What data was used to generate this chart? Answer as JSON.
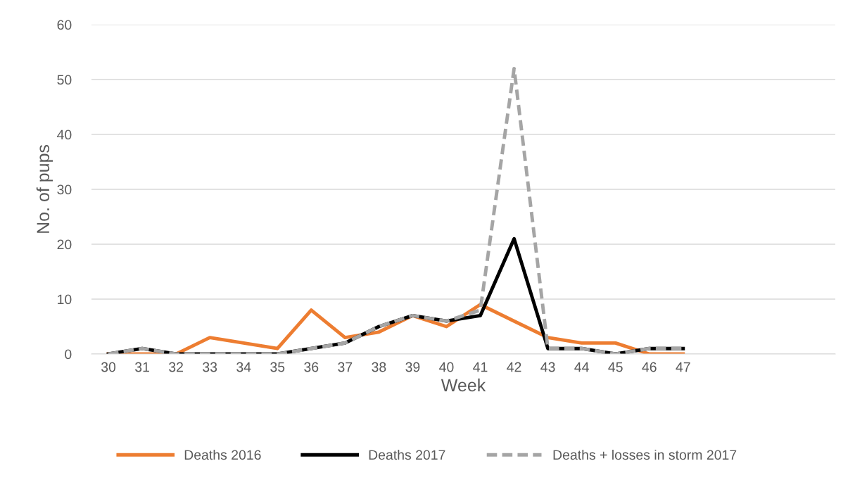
{
  "chart_data": {
    "type": "line",
    "xlabel": "Week",
    "ylabel": "No. of pups",
    "categories": [
      "30",
      "31",
      "32",
      "33",
      "34",
      "35",
      "36",
      "37",
      "38",
      "39",
      "40",
      "41",
      "42",
      "43",
      "44",
      "45",
      "46",
      "47",
      null,
      null,
      null,
      null
    ],
    "series": [
      {
        "name": "Deaths 2016",
        "color": "#ed7d31",
        "line_style": "solid",
        "values": [
          0,
          0,
          0,
          3,
          2,
          1,
          8,
          3,
          4,
          7,
          5,
          9,
          6,
          3,
          2,
          2,
          0,
          0,
          null,
          null,
          null,
          null
        ]
      },
      {
        "name": "Deaths 2017",
        "color": "#000000",
        "line_style": "solid",
        "values": [
          0,
          1,
          0,
          0,
          0,
          0,
          1,
          2,
          5,
          7,
          6,
          7,
          21,
          1,
          1,
          0,
          1,
          1,
          null,
          null,
          null,
          null
        ]
      },
      {
        "name": "Deaths + losses in storm 2017",
        "color": "#a5a5a5",
        "line_style": "dashed",
        "values": [
          0,
          1,
          0,
          0,
          0,
          0,
          1,
          2,
          5,
          7,
          6,
          8,
          52,
          1,
          1,
          0,
          1,
          1,
          null,
          null,
          null,
          null
        ]
      }
    ],
    "ylim": [
      0,
      60
    ],
    "yticks": [
      0,
      10,
      20,
      30,
      40,
      50,
      60
    ],
    "grid": "y",
    "legend": "bottom",
    "marker": "none"
  }
}
